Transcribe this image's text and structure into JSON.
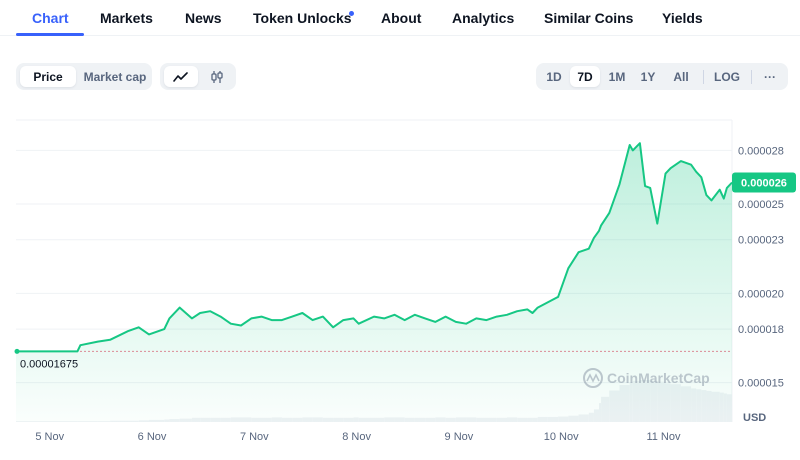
{
  "tabs": [
    {
      "label": "Chart"
    },
    {
      "label": "Markets"
    },
    {
      "label": "News"
    },
    {
      "label": "Token Unlocks"
    },
    {
      "label": "About"
    },
    {
      "label": "Analytics"
    },
    {
      "label": "Similar Coins"
    },
    {
      "label": "Yields"
    }
  ],
  "active_tab": "Chart",
  "toolbar": {
    "metric_options": [
      "Price",
      "Market cap"
    ],
    "selected_metric": "Price",
    "chart_style_icons": [
      "line-chart-icon",
      "candlestick-icon"
    ],
    "selected_style": "line-chart-icon",
    "ranges": [
      "1D",
      "7D",
      "1M",
      "1Y",
      "All"
    ],
    "selected_range": "7D",
    "log_label": "LOG",
    "more_label": "···"
  },
  "colors": {
    "accent": "#3861fb",
    "line": "#16c784",
    "price_tag": "#16c784"
  },
  "chart_data": {
    "type": "area",
    "currency_label": "USD",
    "open_price_label": "0.00001675",
    "current_price_label": "0.000026",
    "watermark": "CoinMarketCap",
    "ytick_labels": [
      "0.000028",
      "0.000025",
      "0.000023",
      "0.000020",
      "0.000018",
      "0.000015"
    ],
    "yticks": [
      2.8e-05,
      2.5e-05,
      2.3e-05,
      2e-05,
      1.8e-05,
      1.5e-05
    ],
    "ylim": [
      1.28e-05,
      2.97e-05
    ],
    "xtick_labels": [
      "5 Nov",
      "6 Nov",
      "7 Nov",
      "8 Nov",
      "9 Nov",
      "10 Nov",
      "11 Nov"
    ],
    "xticks": [
      4.33,
      5.33,
      6.33,
      7.33,
      8.33,
      9.33,
      10.33
    ],
    "xlim": [
      4.0,
      11.0
    ],
    "x": [
      4.0,
      4.6,
      4.63,
      4.8,
      4.92,
      5.1,
      5.2,
      5.3,
      5.45,
      5.5,
      5.6,
      5.72,
      5.8,
      5.9,
      6.0,
      6.1,
      6.2,
      6.3,
      6.4,
      6.5,
      6.6,
      6.7,
      6.8,
      6.9,
      7.0,
      7.1,
      7.2,
      7.3,
      7.35,
      7.5,
      7.6,
      7.7,
      7.8,
      7.9,
      8.0,
      8.1,
      8.2,
      8.3,
      8.4,
      8.5,
      8.6,
      8.7,
      8.8,
      8.9,
      9.0,
      9.05,
      9.1,
      9.2,
      9.3,
      9.4,
      9.5,
      9.6,
      9.65,
      9.7,
      9.72,
      9.8,
      9.9,
      10.0,
      10.03,
      10.1,
      10.15,
      10.2,
      10.27,
      10.35,
      10.4,
      10.5,
      10.6,
      10.65,
      10.7,
      10.75,
      10.8,
      10.88,
      10.92,
      10.95,
      11.0
    ],
    "y": [
      1.675e-05,
      1.675e-05,
      1.71e-05,
      1.73e-05,
      1.74e-05,
      1.79e-05,
      1.81e-05,
      1.77e-05,
      1.8e-05,
      1.86e-05,
      1.92e-05,
      1.86e-05,
      1.89e-05,
      1.9e-05,
      1.87e-05,
      1.83e-05,
      1.82e-05,
      1.86e-05,
      1.87e-05,
      1.85e-05,
      1.85e-05,
      1.87e-05,
      1.89e-05,
      1.85e-05,
      1.87e-05,
      1.81e-05,
      1.85e-05,
      1.86e-05,
      1.83e-05,
      1.87e-05,
      1.86e-05,
      1.88e-05,
      1.85e-05,
      1.88e-05,
      1.86e-05,
      1.84e-05,
      1.87e-05,
      1.84e-05,
      1.83e-05,
      1.86e-05,
      1.85e-05,
      1.87e-05,
      1.88e-05,
      1.9e-05,
      1.91e-05,
      1.89e-05,
      1.92e-05,
      1.95e-05,
      1.98e-05,
      2.14e-05,
      2.23e-05,
      2.25e-05,
      2.31e-05,
      2.35e-05,
      2.38e-05,
      2.45e-05,
      2.61e-05,
      2.83e-05,
      2.8e-05,
      2.84e-05,
      2.6e-05,
      2.59e-05,
      2.39e-05,
      2.67e-05,
      2.7e-05,
      2.74e-05,
      2.72e-05,
      2.68e-05,
      2.65e-05,
      2.55e-05,
      2.52e-05,
      2.58e-05,
      2.53e-05,
      2.59e-05,
      2.62e-05
    ],
    "volume_series": "volume",
    "volume": [
      2,
      2,
      2,
      2,
      3,
      3,
      4,
      5,
      6,
      7,
      8,
      10,
      10,
      10,
      10,
      11,
      11,
      10,
      10,
      11,
      10,
      10,
      11,
      11,
      10,
      10,
      10,
      11,
      10,
      10,
      11,
      11,
      10,
      10,
      10,
      11,
      10,
      11,
      11,
      10,
      10,
      10,
      11,
      10,
      10,
      10,
      12,
      12,
      13,
      15,
      18,
      22,
      30,
      45,
      60,
      75,
      88,
      95,
      98,
      100,
      100,
      98,
      96,
      92,
      90,
      85,
      80,
      78,
      76,
      74,
      72,
      70,
      68,
      66,
      65
    ]
  }
}
